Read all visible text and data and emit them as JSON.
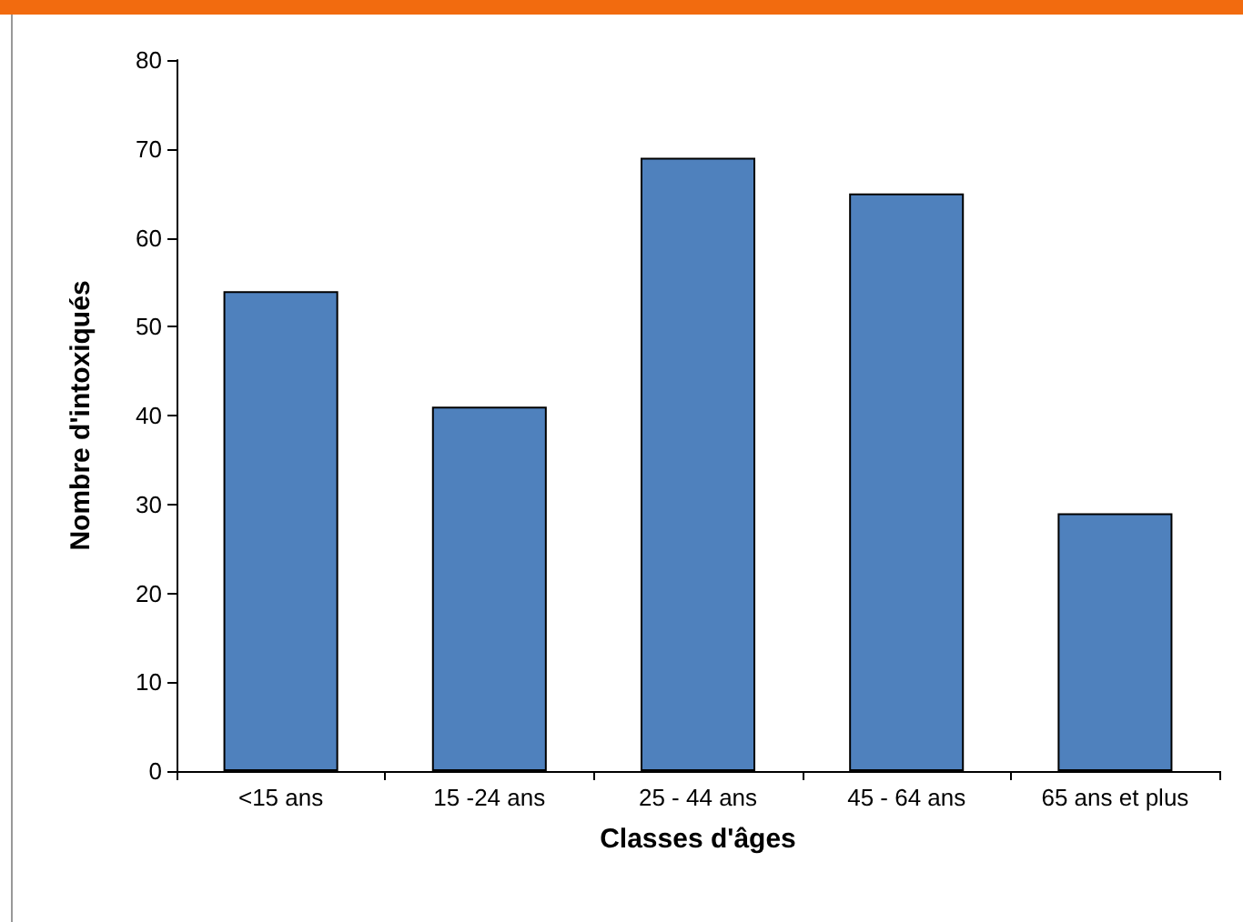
{
  "chart_data": {
    "type": "bar",
    "xlabel": "Classes d'âges",
    "ylabel": "Nombre d'intoxiqués",
    "categories": [
      "<15 ans",
      "15 -24 ans",
      "25 - 44 ans",
      "45 - 64 ans",
      "65 ans et plus"
    ],
    "values": [
      54,
      41,
      69,
      65,
      29
    ],
    "color": "#4f81bd",
    "ylim": [
      0,
      80
    ],
    "yticks": [
      0,
      10,
      20,
      30,
      40,
      50,
      60,
      70,
      80
    ],
    "grid": false
  }
}
